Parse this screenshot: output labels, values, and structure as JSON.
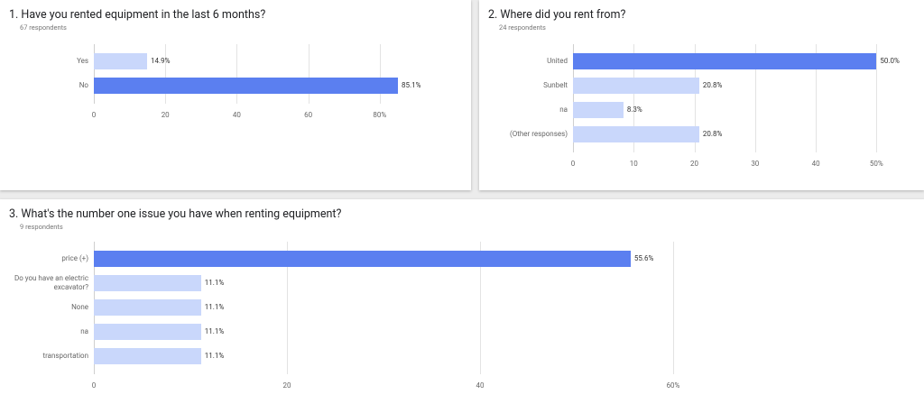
{
  "chart_data": [
    {
      "type": "bar",
      "orientation": "horizontal",
      "title": "1.  Have you rented equipment in the last 6 months?",
      "subtitle": "67 respondents",
      "categories": [
        "Yes",
        "No"
      ],
      "values": [
        14.9,
        85.1
      ],
      "value_labels": [
        "14.9%",
        "85.1%"
      ],
      "colors": [
        "#c9d7fb",
        "#5b7ff0"
      ],
      "xlim": [
        0,
        100
      ],
      "xticks": [
        0,
        20,
        40,
        60,
        {
          "value": 80,
          "label": "80%"
        }
      ],
      "grid": true
    },
    {
      "type": "bar",
      "orientation": "horizontal",
      "title": "2.  Where did you rent from?",
      "subtitle": "24 respondents",
      "categories": [
        "United",
        "Sunbelt",
        "na",
        "(Other responses)"
      ],
      "values": [
        50.0,
        20.8,
        8.3,
        20.8
      ],
      "value_labels": [
        "50.0%",
        "20.8%",
        "8.3%",
        "20.8%"
      ],
      "colors": [
        "#5b7ff0",
        "#c9d7fb",
        "#c9d7fb",
        "#c9d7fb"
      ],
      "xlim": [
        0,
        55
      ],
      "xticks": [
        0,
        10,
        20,
        30,
        40,
        {
          "value": 50,
          "label": "50%"
        }
      ],
      "grid": true
    },
    {
      "type": "bar",
      "orientation": "horizontal",
      "title": "3.  What's the number one issue you have when renting equipment?",
      "subtitle": "9 respondents",
      "categories": [
        "price (+)",
        "Do you have an electric excavator?",
        "None",
        "na",
        "transportation"
      ],
      "values": [
        55.6,
        11.1,
        11.1,
        11.1,
        11.1
      ],
      "value_labels": [
        "55.6%",
        "11.1%",
        "11.1%",
        "11.1%",
        "11.1%"
      ],
      "colors": [
        "#5b7ff0",
        "#c9d7fb",
        "#c9d7fb",
        "#c9d7fb",
        "#c9d7fb"
      ],
      "xlim": [
        0,
        80
      ],
      "xticks": [
        0,
        20,
        40,
        {
          "value": 60,
          "label": "60%"
        }
      ],
      "grid": true
    }
  ]
}
